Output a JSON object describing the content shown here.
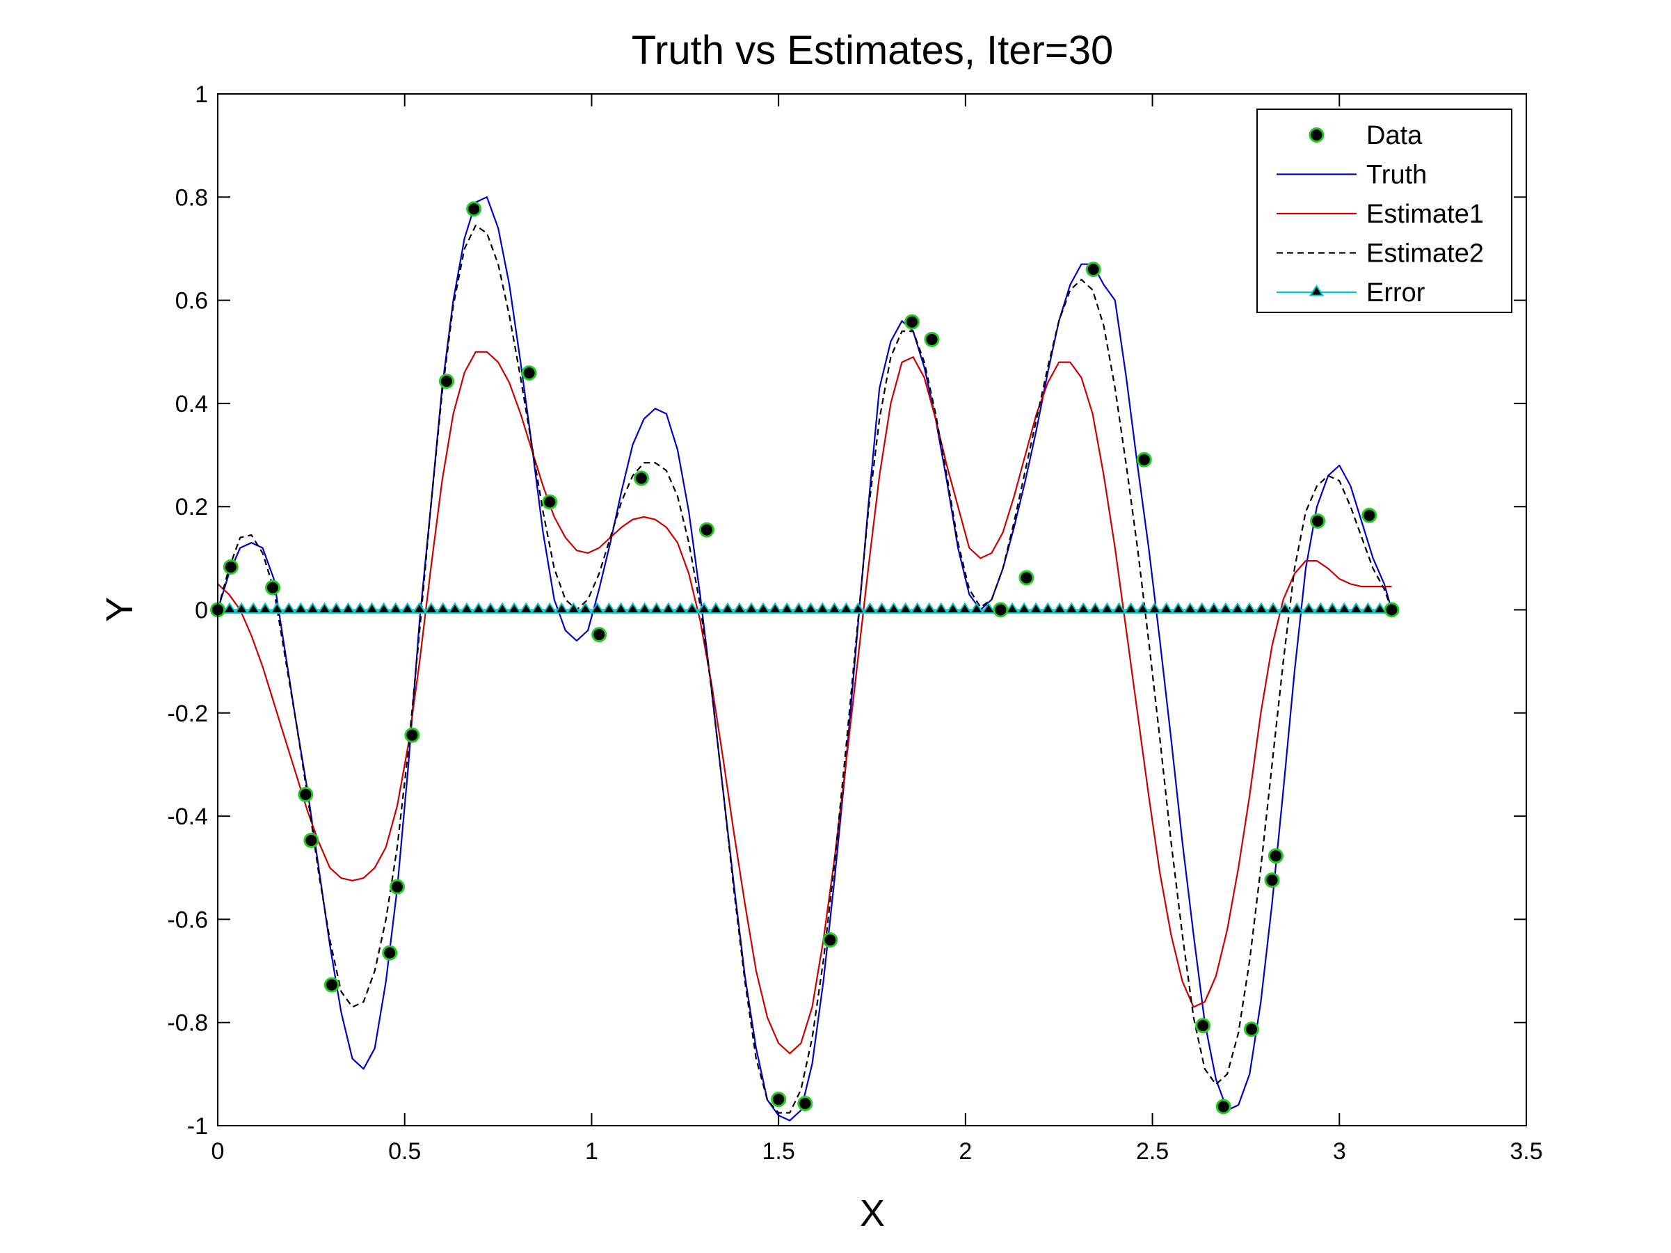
{
  "chart_data": {
    "type": "line",
    "title": "Truth vs Estimates, Iter=30",
    "xlabel": "X",
    "ylabel": "Y",
    "xlim": [
      0,
      3.5
    ],
    "ylim": [
      -1,
      1
    ],
    "xticks": [
      0,
      0.5,
      1,
      1.5,
      2,
      2.5,
      3,
      3.5
    ],
    "xtick_labels": [
      "0",
      "0.5",
      "1",
      "1.5",
      "2",
      "2.5",
      "3",
      "3.5"
    ],
    "yticks": [
      -1,
      -0.8,
      -0.6,
      -0.4,
      -0.2,
      0,
      0.2,
      0.4,
      0.6,
      0.8,
      1
    ],
    "ytick_labels": [
      "-1",
      "-0.8",
      "-0.6",
      "-0.4",
      "-0.2",
      "0",
      "0.2",
      "0.4",
      "0.6",
      "0.8",
      "1"
    ],
    "grid": false,
    "legend_position": "top-right",
    "series": [
      {
        "name": "Data",
        "kind": "marker",
        "marker": "circle",
        "color": "#000000",
        "edge_color": "#22cc22",
        "x": [
          0.0,
          0.035,
          0.147,
          0.235,
          0.25,
          0.305,
          0.46,
          0.48,
          0.52,
          0.612,
          0.685,
          0.833,
          0.888,
          1.02,
          1.133,
          1.308,
          1.5,
          1.571,
          1.638,
          1.857,
          1.91,
          2.094,
          2.163,
          2.342,
          2.478,
          2.635,
          2.69,
          2.765,
          2.82,
          2.83,
          2.942,
          3.08,
          3.14
        ],
        "y": [
          0.0,
          0.083,
          0.043,
          -0.358,
          -0.447,
          -0.727,
          -0.665,
          -0.537,
          -0.243,
          0.443,
          0.777,
          0.459,
          0.209,
          -0.048,
          0.255,
          0.155,
          -0.949,
          -0.957,
          -0.64,
          0.558,
          0.524,
          0.0,
          0.062,
          0.66,
          0.291,
          -0.806,
          -0.963,
          -0.813,
          -0.524,
          -0.477,
          0.172,
          0.183,
          0.0
        ]
      },
      {
        "name": "Truth",
        "kind": "line",
        "color": "#0000cc",
        "dash": "solid",
        "x": [
          0.0,
          0.03,
          0.06,
          0.09,
          0.12,
          0.15,
          0.18,
          0.21,
          0.24,
          0.27,
          0.3,
          0.33,
          0.36,
          0.39,
          0.42,
          0.45,
          0.48,
          0.51,
          0.54,
          0.57,
          0.6,
          0.63,
          0.66,
          0.69,
          0.72,
          0.75,
          0.78,
          0.81,
          0.84,
          0.87,
          0.9,
          0.93,
          0.96,
          0.99,
          1.02,
          1.05,
          1.08,
          1.11,
          1.14,
          1.17,
          1.2,
          1.23,
          1.26,
          1.29,
          1.32,
          1.35,
          1.38,
          1.41,
          1.44,
          1.47,
          1.5,
          1.53,
          1.56,
          1.59,
          1.62,
          1.65,
          1.68,
          1.71,
          1.74,
          1.77,
          1.8,
          1.83,
          1.86,
          1.89,
          1.92,
          1.95,
          1.98,
          2.01,
          2.04,
          2.07,
          2.1,
          2.13,
          2.16,
          2.19,
          2.22,
          2.25,
          2.28,
          2.31,
          2.34,
          2.37,
          2.4,
          2.43,
          2.46,
          2.49,
          2.52,
          2.55,
          2.58,
          2.61,
          2.64,
          2.67,
          2.7,
          2.73,
          2.76,
          2.79,
          2.82,
          2.85,
          2.88,
          2.91,
          2.94,
          2.97,
          3.0,
          3.03,
          3.06,
          3.09,
          3.12,
          3.14
        ],
        "y": [
          0.0,
          0.07,
          0.12,
          0.13,
          0.12,
          0.06,
          -0.08,
          -0.22,
          -0.35,
          -0.5,
          -0.65,
          -0.78,
          -0.87,
          -0.89,
          -0.85,
          -0.72,
          -0.54,
          -0.3,
          -0.02,
          0.2,
          0.43,
          0.6,
          0.72,
          0.79,
          0.8,
          0.74,
          0.63,
          0.48,
          0.32,
          0.15,
          0.02,
          -0.04,
          -0.06,
          -0.04,
          0.04,
          0.13,
          0.23,
          0.32,
          0.37,
          0.39,
          0.38,
          0.31,
          0.19,
          0.03,
          -0.15,
          -0.34,
          -0.53,
          -0.71,
          -0.85,
          -0.95,
          -0.98,
          -0.99,
          -0.97,
          -0.88,
          -0.72,
          -0.52,
          -0.3,
          -0.05,
          0.2,
          0.43,
          0.52,
          0.56,
          0.54,
          0.47,
          0.37,
          0.25,
          0.12,
          0.03,
          0.0,
          0.02,
          0.08,
          0.16,
          0.25,
          0.35,
          0.46,
          0.56,
          0.63,
          0.67,
          0.67,
          0.63,
          0.6,
          0.45,
          0.28,
          0.12,
          -0.06,
          -0.25,
          -0.45,
          -0.63,
          -0.8,
          -0.91,
          -0.97,
          -0.96,
          -0.9,
          -0.76,
          -0.57,
          -0.35,
          -0.12,
          0.08,
          0.2,
          0.26,
          0.28,
          0.24,
          0.17,
          0.1,
          0.05,
          0.0
        ]
      },
      {
        "name": "Estimate1",
        "kind": "line",
        "color": "#cc0000",
        "dash": "solid",
        "x": [
          0.0,
          0.03,
          0.06,
          0.09,
          0.12,
          0.15,
          0.18,
          0.21,
          0.24,
          0.27,
          0.3,
          0.33,
          0.36,
          0.39,
          0.42,
          0.45,
          0.48,
          0.51,
          0.54,
          0.57,
          0.6,
          0.63,
          0.66,
          0.69,
          0.72,
          0.75,
          0.78,
          0.81,
          0.84,
          0.87,
          0.9,
          0.93,
          0.96,
          0.99,
          1.02,
          1.05,
          1.08,
          1.11,
          1.14,
          1.17,
          1.2,
          1.23,
          1.26,
          1.29,
          1.32,
          1.35,
          1.38,
          1.41,
          1.44,
          1.47,
          1.5,
          1.53,
          1.56,
          1.59,
          1.62,
          1.65,
          1.68,
          1.71,
          1.74,
          1.77,
          1.8,
          1.83,
          1.86,
          1.89,
          1.92,
          1.95,
          1.98,
          2.01,
          2.04,
          2.07,
          2.1,
          2.13,
          2.16,
          2.19,
          2.22,
          2.25,
          2.28,
          2.31,
          2.34,
          2.37,
          2.4,
          2.43,
          2.46,
          2.49,
          2.52,
          2.55,
          2.58,
          2.61,
          2.64,
          2.67,
          2.7,
          2.73,
          2.76,
          2.79,
          2.82,
          2.85,
          2.88,
          2.91,
          2.94,
          2.97,
          3.0,
          3.03,
          3.06,
          3.09,
          3.12,
          3.14
        ],
        "y": [
          0.05,
          0.03,
          0.0,
          -0.05,
          -0.11,
          -0.18,
          -0.25,
          -0.32,
          -0.39,
          -0.45,
          -0.5,
          -0.52,
          -0.525,
          -0.52,
          -0.5,
          -0.46,
          -0.38,
          -0.26,
          -0.1,
          0.08,
          0.25,
          0.38,
          0.46,
          0.5,
          0.5,
          0.48,
          0.44,
          0.38,
          0.31,
          0.24,
          0.18,
          0.14,
          0.115,
          0.11,
          0.12,
          0.14,
          0.16,
          0.175,
          0.18,
          0.175,
          0.16,
          0.13,
          0.07,
          -0.02,
          -0.14,
          -0.28,
          -0.43,
          -0.57,
          -0.7,
          -0.79,
          -0.84,
          -0.86,
          -0.84,
          -0.77,
          -0.64,
          -0.48,
          -0.3,
          -0.11,
          0.08,
          0.26,
          0.4,
          0.48,
          0.49,
          0.45,
          0.37,
          0.28,
          0.2,
          0.12,
          0.1,
          0.11,
          0.15,
          0.22,
          0.3,
          0.38,
          0.44,
          0.48,
          0.48,
          0.45,
          0.38,
          0.26,
          0.12,
          -0.04,
          -0.2,
          -0.36,
          -0.51,
          -0.63,
          -0.72,
          -0.77,
          -0.76,
          -0.71,
          -0.62,
          -0.5,
          -0.36,
          -0.2,
          -0.07,
          0.02,
          0.07,
          0.095,
          0.095,
          0.08,
          0.06,
          0.05,
          0.045,
          0.045,
          0.045,
          0.045
        ],
        "note": ""
      },
      {
        "name": "Estimate2",
        "kind": "line",
        "color": "#000000",
        "dash": "dashed",
        "x": [
          0.0,
          0.03,
          0.06,
          0.09,
          0.12,
          0.15,
          0.18,
          0.21,
          0.24,
          0.27,
          0.3,
          0.33,
          0.36,
          0.39,
          0.42,
          0.45,
          0.48,
          0.51,
          0.54,
          0.57,
          0.6,
          0.63,
          0.66,
          0.69,
          0.72,
          0.75,
          0.78,
          0.81,
          0.84,
          0.87,
          0.9,
          0.93,
          0.96,
          0.99,
          1.02,
          1.05,
          1.08,
          1.11,
          1.14,
          1.17,
          1.2,
          1.23,
          1.26,
          1.29,
          1.32,
          1.35,
          1.38,
          1.41,
          1.44,
          1.47,
          1.5,
          1.53,
          1.56,
          1.59,
          1.62,
          1.65,
          1.68,
          1.71,
          1.74,
          1.77,
          1.8,
          1.83,
          1.86,
          1.89,
          1.92,
          1.95,
          1.98,
          2.01,
          2.04,
          2.07,
          2.1,
          2.13,
          2.16,
          2.19,
          2.22,
          2.25,
          2.28,
          2.31,
          2.34,
          2.37,
          2.4,
          2.43,
          2.46,
          2.49,
          2.52,
          2.55,
          2.58,
          2.61,
          2.64,
          2.67,
          2.7,
          2.73,
          2.76,
          2.79,
          2.82,
          2.85,
          2.88,
          2.91,
          2.94,
          2.97,
          3.0,
          3.03,
          3.06,
          3.09,
          3.12,
          3.14
        ],
        "y": [
          0.0,
          0.08,
          0.14,
          0.145,
          0.11,
          0.04,
          -0.09,
          -0.22,
          -0.36,
          -0.51,
          -0.64,
          -0.74,
          -0.77,
          -0.76,
          -0.7,
          -0.6,
          -0.46,
          -0.27,
          -0.04,
          0.2,
          0.42,
          0.59,
          0.7,
          0.745,
          0.73,
          0.67,
          0.57,
          0.45,
          0.32,
          0.19,
          0.08,
          0.02,
          0.0,
          0.02,
          0.07,
          0.14,
          0.21,
          0.26,
          0.285,
          0.285,
          0.27,
          0.22,
          0.13,
          0.01,
          -0.15,
          -0.34,
          -0.54,
          -0.72,
          -0.87,
          -0.95,
          -0.975,
          -0.975,
          -0.93,
          -0.83,
          -0.68,
          -0.49,
          -0.27,
          -0.04,
          0.19,
          0.37,
          0.49,
          0.54,
          0.54,
          0.48,
          0.38,
          0.26,
          0.13,
          0.04,
          0.005,
          0.02,
          0.08,
          0.17,
          0.27,
          0.37,
          0.47,
          0.56,
          0.62,
          0.64,
          0.62,
          0.55,
          0.43,
          0.28,
          0.12,
          -0.06,
          -0.25,
          -0.45,
          -0.63,
          -0.79,
          -0.89,
          -0.92,
          -0.9,
          -0.82,
          -0.68,
          -0.5,
          -0.3,
          -0.1,
          0.08,
          0.19,
          0.24,
          0.26,
          0.25,
          0.2,
          0.14,
          0.08,
          0.04,
          0.0
        ]
      },
      {
        "name": "Error",
        "kind": "line+marker",
        "marker": "triangle",
        "color": "#00cccc",
        "marker_color": "#000000",
        "x_start": 0,
        "x_end": 3.14,
        "count": 100,
        "y": 0
      }
    ]
  }
}
